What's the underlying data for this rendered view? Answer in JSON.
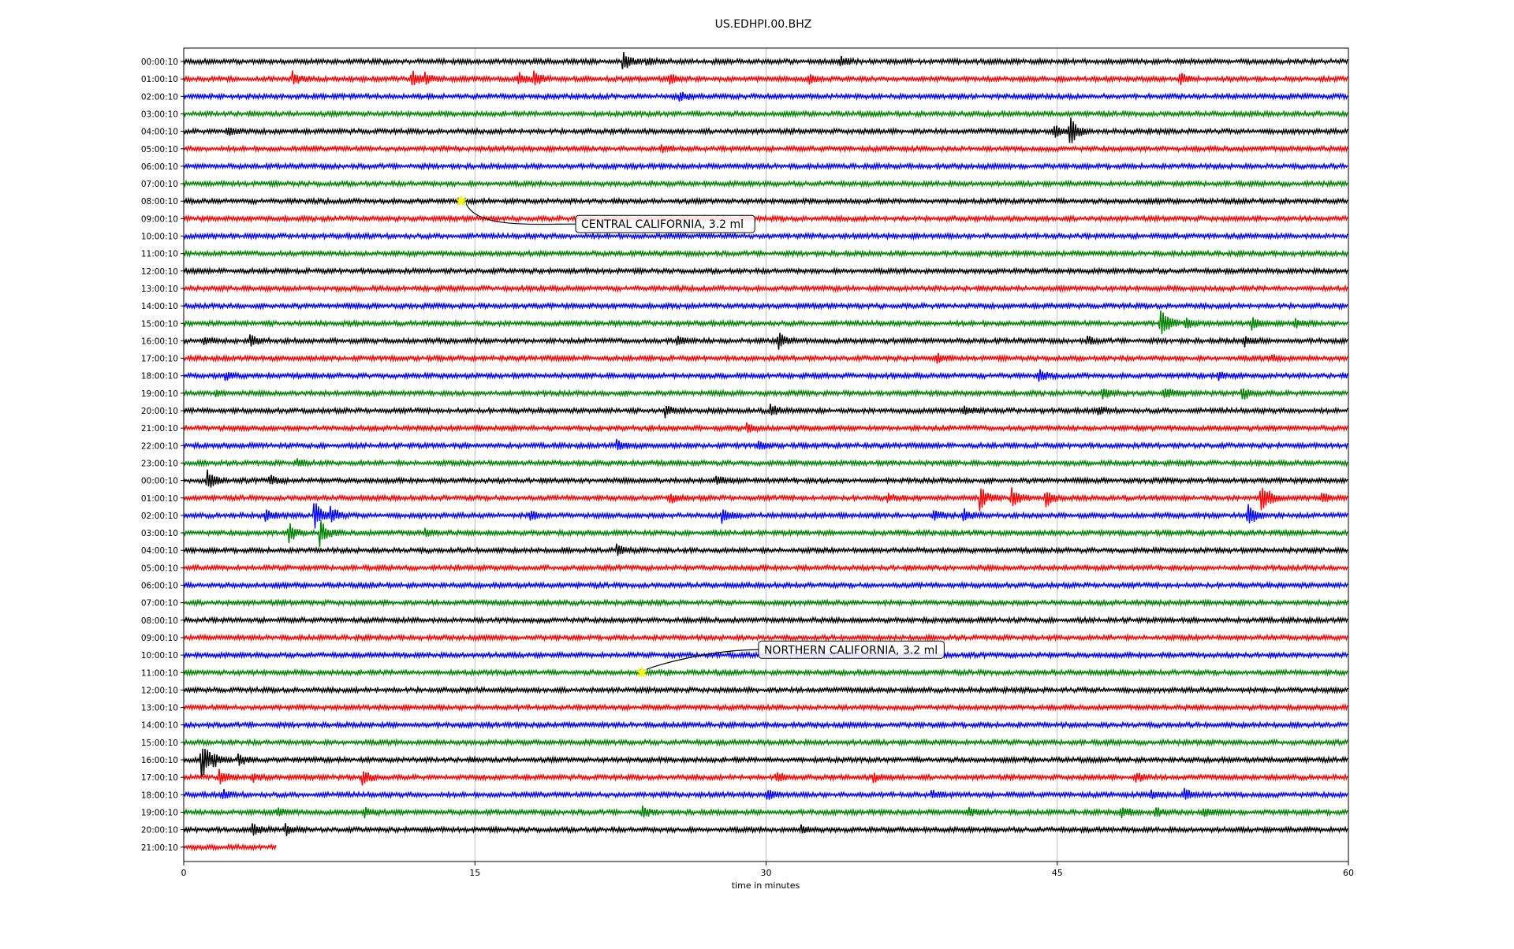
{
  "chart_data": {
    "type": "line",
    "title": "US.EDHPI.00.BHZ",
    "xlabel": "time in minutes",
    "ylabel": "",
    "xlim": [
      0,
      60
    ],
    "xticks": [
      "0",
      "15",
      "30",
      "45",
      "60"
    ],
    "grid": "vertical",
    "row_labels": [
      "00:00:10",
      "01:00:10",
      "02:00:10",
      "03:00:10",
      "04:00:10",
      "05:00:10",
      "06:00:10",
      "07:00:10",
      "08:00:10",
      "09:00:10",
      "10:00:10",
      "11:00:10",
      "12:00:10",
      "13:00:10",
      "14:00:10",
      "15:00:10",
      "16:00:10",
      "17:00:10",
      "18:00:10",
      "19:00:10",
      "20:00:10",
      "21:00:10",
      "22:00:10",
      "23:00:10",
      "00:00:10",
      "01:00:10",
      "02:00:10",
      "03:00:10",
      "04:00:10",
      "05:00:10",
      "06:00:10",
      "07:00:10",
      "08:00:10",
      "09:00:10",
      "10:00:10",
      "11:00:10",
      "12:00:10",
      "13:00:10",
      "14:00:10",
      "15:00:10",
      "16:00:10",
      "17:00:10",
      "18:00:10",
      "19:00:10",
      "20:00:10",
      "21:00:10"
    ],
    "trace_colors": [
      "#000000",
      "#ff0000",
      "#0000ff",
      "#008000"
    ],
    "last_trace_end_minute": 4.8,
    "events": [
      {
        "label": "CENTRAL CALIFORNIA, 3.2 ml",
        "row": 8,
        "minute": 14.3
      },
      {
        "label": "NORTHERN CALIFORNIA, 3.2 ml",
        "row": 35,
        "minute": 23.6
      }
    ],
    "bursts": [
      {
        "row": 0,
        "minute": 22.6,
        "amp": 1.0
      },
      {
        "row": 0,
        "minute": 23.8,
        "amp": 0.4
      },
      {
        "row": 0,
        "minute": 33.8,
        "amp": 0.4
      },
      {
        "row": 1,
        "minute": 5.6,
        "amp": 0.6
      },
      {
        "row": 1,
        "minute": 11.7,
        "amp": 0.8
      },
      {
        "row": 1,
        "minute": 12.4,
        "amp": 0.6
      },
      {
        "row": 1,
        "minute": 17.2,
        "amp": 0.6
      },
      {
        "row": 1,
        "minute": 18.0,
        "amp": 0.7
      },
      {
        "row": 1,
        "minute": 25.0,
        "amp": 0.5
      },
      {
        "row": 1,
        "minute": 32.2,
        "amp": 0.5
      },
      {
        "row": 1,
        "minute": 51.3,
        "amp": 0.5
      },
      {
        "row": 2,
        "minute": 25.5,
        "amp": 0.5
      },
      {
        "row": 4,
        "minute": 2.2,
        "amp": 0.5
      },
      {
        "row": 4,
        "minute": 44.8,
        "amp": 0.7
      },
      {
        "row": 4,
        "minute": 45.6,
        "amp": 1.6
      },
      {
        "row": 5,
        "minute": 24.6,
        "amp": 0.3
      },
      {
        "row": 15,
        "minute": 50.3,
        "amp": 1.6
      },
      {
        "row": 15,
        "minute": 51.6,
        "amp": 0.5
      },
      {
        "row": 15,
        "minute": 55.0,
        "amp": 0.6
      },
      {
        "row": 15,
        "minute": 57.2,
        "amp": 0.4
      },
      {
        "row": 16,
        "minute": 1.0,
        "amp": 0.4
      },
      {
        "row": 16,
        "minute": 3.4,
        "amp": 0.5
      },
      {
        "row": 16,
        "minute": 25.4,
        "amp": 0.4
      },
      {
        "row": 16,
        "minute": 30.6,
        "amp": 0.8
      },
      {
        "row": 16,
        "minute": 46.5,
        "amp": 0.4
      },
      {
        "row": 16,
        "minute": 54.6,
        "amp": 0.5
      },
      {
        "row": 17,
        "minute": 38.8,
        "amp": 0.4
      },
      {
        "row": 17,
        "minute": 56.0,
        "amp": 0.3
      },
      {
        "row": 18,
        "minute": 2.1,
        "amp": 0.4
      },
      {
        "row": 18,
        "minute": 44.0,
        "amp": 0.6
      },
      {
        "row": 18,
        "minute": 53.3,
        "amp": 0.4
      },
      {
        "row": 19,
        "minute": 1.6,
        "amp": 0.3
      },
      {
        "row": 19,
        "minute": 47.3,
        "amp": 0.5
      },
      {
        "row": 19,
        "minute": 50.5,
        "amp": 0.5
      },
      {
        "row": 19,
        "minute": 54.5,
        "amp": 0.7
      },
      {
        "row": 20,
        "minute": 24.8,
        "amp": 0.5
      },
      {
        "row": 20,
        "minute": 30.2,
        "amp": 0.6
      },
      {
        "row": 20,
        "minute": 40.2,
        "amp": 0.4
      },
      {
        "row": 20,
        "minute": 47.1,
        "amp": 0.4
      },
      {
        "row": 21,
        "minute": 29.0,
        "amp": 0.4
      },
      {
        "row": 22,
        "minute": 22.3,
        "amp": 0.5
      },
      {
        "row": 22,
        "minute": 29.6,
        "amp": 0.4
      },
      {
        "row": 23,
        "minute": 5.8,
        "amp": 0.4
      },
      {
        "row": 24,
        "minute": 1.2,
        "amp": 1.0
      },
      {
        "row": 24,
        "minute": 4.4,
        "amp": 0.5
      },
      {
        "row": 24,
        "minute": 27.4,
        "amp": 0.4
      },
      {
        "row": 25,
        "minute": 25.0,
        "amp": 0.5
      },
      {
        "row": 25,
        "minute": 36.2,
        "amp": 0.4
      },
      {
        "row": 25,
        "minute": 41.0,
        "amp": 1.2
      },
      {
        "row": 25,
        "minute": 42.6,
        "amp": 1.1
      },
      {
        "row": 25,
        "minute": 44.4,
        "amp": 0.8
      },
      {
        "row": 25,
        "minute": 55.5,
        "amp": 1.8
      },
      {
        "row": 25,
        "minute": 58.6,
        "amp": 0.5
      },
      {
        "row": 26,
        "minute": 4.2,
        "amp": 0.5
      },
      {
        "row": 26,
        "minute": 6.7,
        "amp": 1.6
      },
      {
        "row": 26,
        "minute": 7.5,
        "amp": 1.0
      },
      {
        "row": 26,
        "minute": 17.8,
        "amp": 0.5
      },
      {
        "row": 26,
        "minute": 27.7,
        "amp": 0.7
      },
      {
        "row": 26,
        "minute": 38.6,
        "amp": 0.6
      },
      {
        "row": 26,
        "minute": 40.1,
        "amp": 0.7
      },
      {
        "row": 26,
        "minute": 54.8,
        "amp": 1.2
      },
      {
        "row": 27,
        "minute": 5.4,
        "amp": 1.0
      },
      {
        "row": 27,
        "minute": 7.0,
        "amp": 1.2
      },
      {
        "row": 27,
        "minute": 12.4,
        "amp": 0.3
      },
      {
        "row": 28,
        "minute": 22.3,
        "amp": 0.5
      },
      {
        "row": 40,
        "minute": 0.9,
        "amp": 2.0
      },
      {
        "row": 40,
        "minute": 1.5,
        "amp": 0.8
      },
      {
        "row": 40,
        "minute": 2.8,
        "amp": 0.6
      },
      {
        "row": 41,
        "minute": 1.8,
        "amp": 0.7
      },
      {
        "row": 41,
        "minute": 3.5,
        "amp": 0.4
      },
      {
        "row": 41,
        "minute": 9.2,
        "amp": 0.8
      },
      {
        "row": 41,
        "minute": 30.5,
        "amp": 0.5
      },
      {
        "row": 41,
        "minute": 35.5,
        "amp": 0.4
      },
      {
        "row": 41,
        "minute": 49.0,
        "amp": 0.5
      },
      {
        "row": 42,
        "minute": 2.0,
        "amp": 0.4
      },
      {
        "row": 42,
        "minute": 30.0,
        "amp": 0.5
      },
      {
        "row": 42,
        "minute": 38.5,
        "amp": 0.4
      },
      {
        "row": 42,
        "minute": 49.8,
        "amp": 0.5
      },
      {
        "row": 42,
        "minute": 51.5,
        "amp": 0.7
      },
      {
        "row": 43,
        "minute": 4.8,
        "amp": 0.4
      },
      {
        "row": 43,
        "minute": 9.3,
        "amp": 0.4
      },
      {
        "row": 43,
        "minute": 23.6,
        "amp": 0.5
      },
      {
        "row": 43,
        "minute": 40.4,
        "amp": 0.5
      },
      {
        "row": 43,
        "minute": 48.3,
        "amp": 0.6
      },
      {
        "row": 43,
        "minute": 50.0,
        "amp": 0.4
      },
      {
        "row": 43,
        "minute": 52.5,
        "amp": 0.4
      },
      {
        "row": 44,
        "minute": 3.5,
        "amp": 0.6
      },
      {
        "row": 44,
        "minute": 5.2,
        "amp": 0.6
      },
      {
        "row": 44,
        "minute": 31.8,
        "amp": 0.3
      }
    ]
  }
}
